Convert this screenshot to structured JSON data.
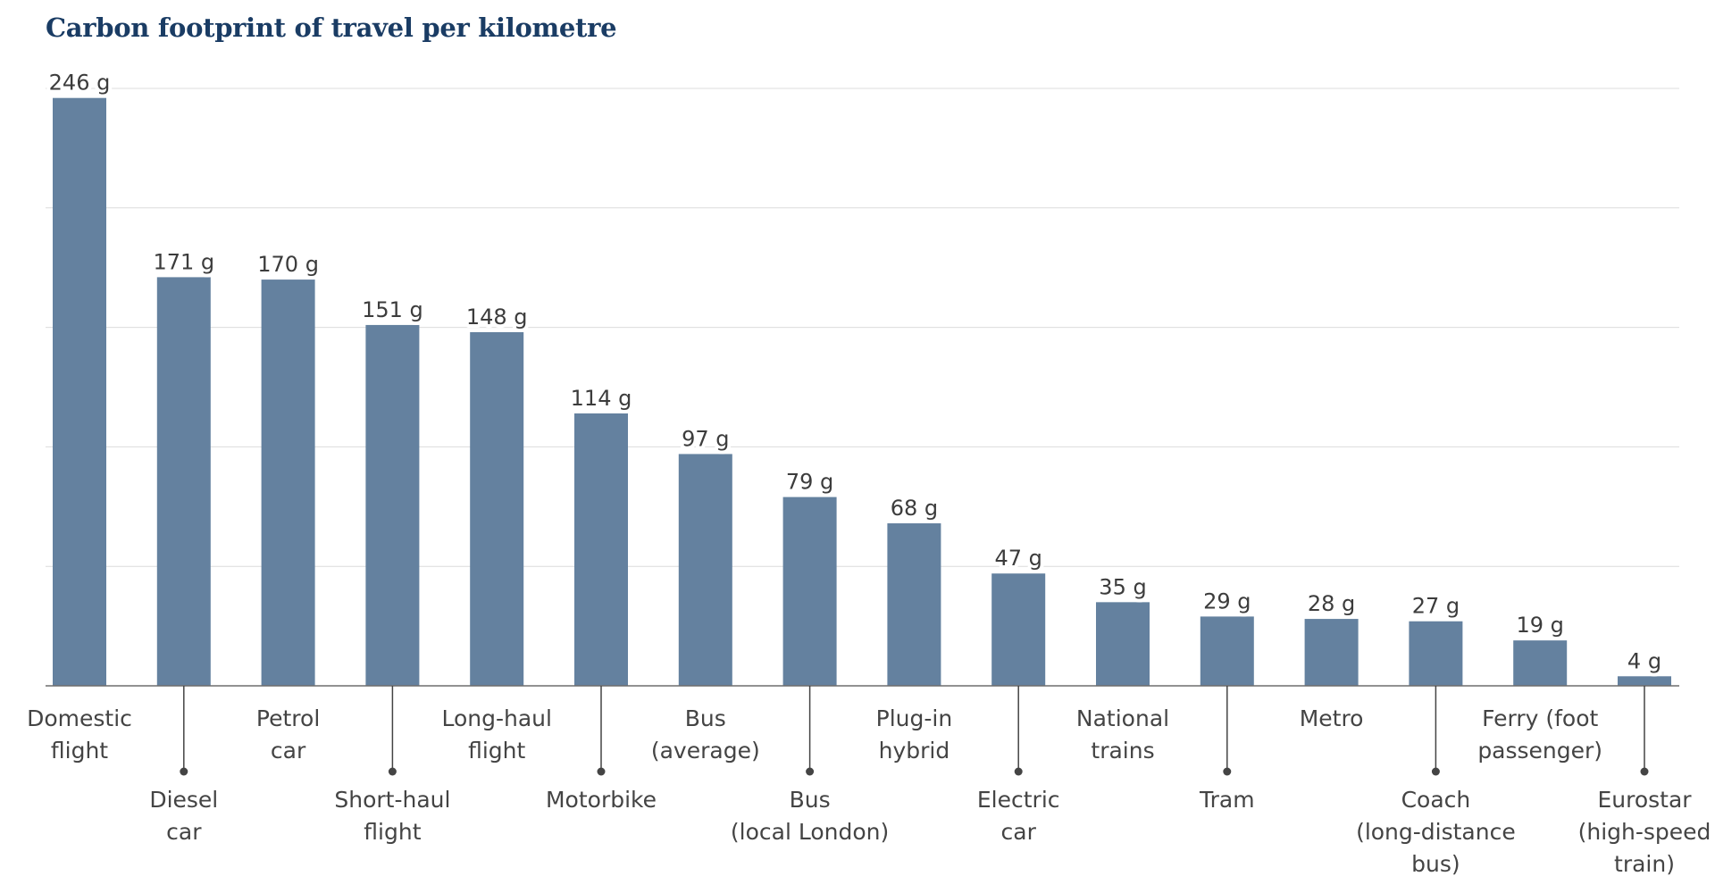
{
  "chart_data": {
    "type": "bar",
    "title": "Carbon footprint of travel per kilometre",
    "xlabel": "",
    "ylabel": "",
    "ylim": [
      0,
      250
    ],
    "grid": true,
    "unit": "g",
    "categories": [
      [
        "Domestic",
        "flight"
      ],
      [
        "Diesel",
        "car"
      ],
      [
        "Petrol",
        "car"
      ],
      [
        "Short-haul",
        "flight"
      ],
      [
        "Long-haul",
        "flight"
      ],
      [
        "Motorbike"
      ],
      [
        "Bus",
        "(average)"
      ],
      [
        "Bus",
        "(local London)"
      ],
      [
        "Plug-in",
        "hybrid"
      ],
      [
        "Electric",
        "car"
      ],
      [
        "National",
        "trains"
      ],
      [
        "Tram"
      ],
      [
        "Metro"
      ],
      [
        "Coach",
        "(long-distance",
        "bus)"
      ],
      [
        "Ferry (foot",
        "passenger)"
      ],
      [
        "Eurostar",
        "(high-speed",
        "train)"
      ]
    ],
    "values": [
      246,
      171,
      170,
      151,
      148,
      114,
      97,
      79,
      68,
      47,
      35,
      29,
      28,
      27,
      19,
      4
    ],
    "value_labels": [
      "246 g",
      "171 g",
      "170 g",
      "151 g",
      "148 g",
      "114 g",
      "97 g",
      "79 g",
      "68 g",
      "47 g",
      "35 g",
      "29 g",
      "28 g",
      "27 g",
      "19 g",
      "4 g"
    ],
    "colors": {
      "bar": "#64819f",
      "title": "#1a3c64",
      "grid": "#dcdcdc",
      "text": "#444444"
    }
  }
}
